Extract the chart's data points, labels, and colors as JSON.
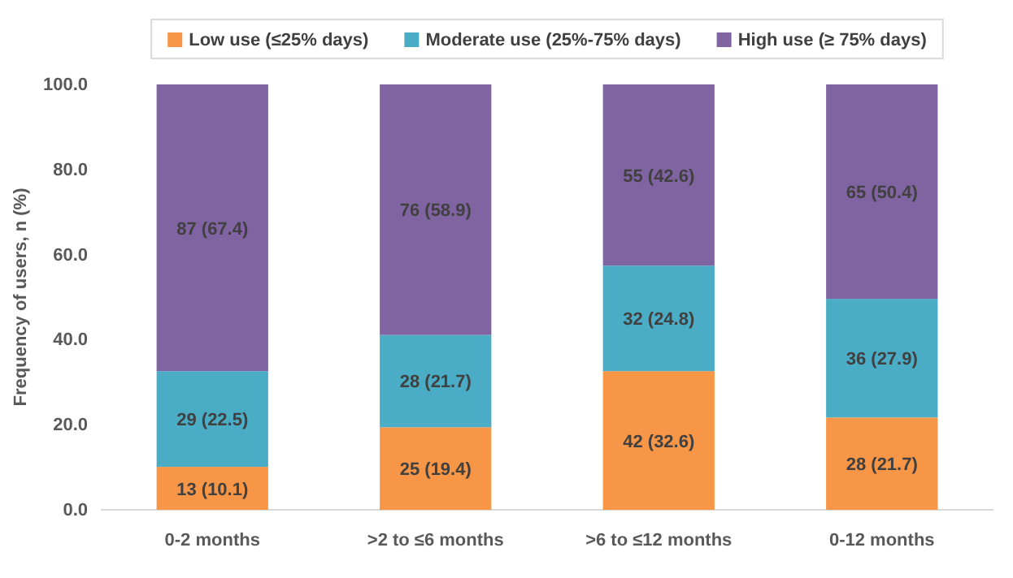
{
  "chart_data": {
    "type": "bar",
    "stacked": true,
    "ylabel": "Frequency of users, n (%)",
    "categories": [
      "0-2 months",
      ">2 to ≤6 months",
      ">6 to ≤12 months",
      "0-12 months"
    ],
    "series": [
      {
        "name": "Low use (≤25% days)",
        "color": "#f79646",
        "values": [
          10.1,
          19.4,
          32.6,
          21.7
        ],
        "value_labels": [
          "13 (10.1)",
          "25 (19.4)",
          "42 (32.6)",
          "28 (21.7)"
        ]
      },
      {
        "name": "Moderate use (25%-75% days)",
        "color": "#4bacc6",
        "values": [
          22.5,
          21.7,
          24.8,
          27.9
        ],
        "value_labels": [
          "29 (22.5)",
          "28 (21.7)",
          "32 (24.8)",
          "36 (27.9)"
        ]
      },
      {
        "name": "High use (≥ 75% days)",
        "color": "#8064a2",
        "values": [
          67.4,
          58.9,
          42.6,
          50.4
        ],
        "value_labels": [
          "87 (67.4)",
          "76 (58.9)",
          "55 (42.6)",
          "65 (50.4)"
        ]
      }
    ],
    "ylim": [
      0,
      100
    ],
    "yticks": [
      {
        "value": 0,
        "label": "0.0"
      },
      {
        "value": 20,
        "label": "20.0"
      },
      {
        "value": 40,
        "label": "40.0"
      },
      {
        "value": 60,
        "label": "60.0"
      },
      {
        "value": 80,
        "label": "80.0"
      },
      {
        "value": 100,
        "label": "100.0"
      }
    ],
    "legend": "top"
  }
}
